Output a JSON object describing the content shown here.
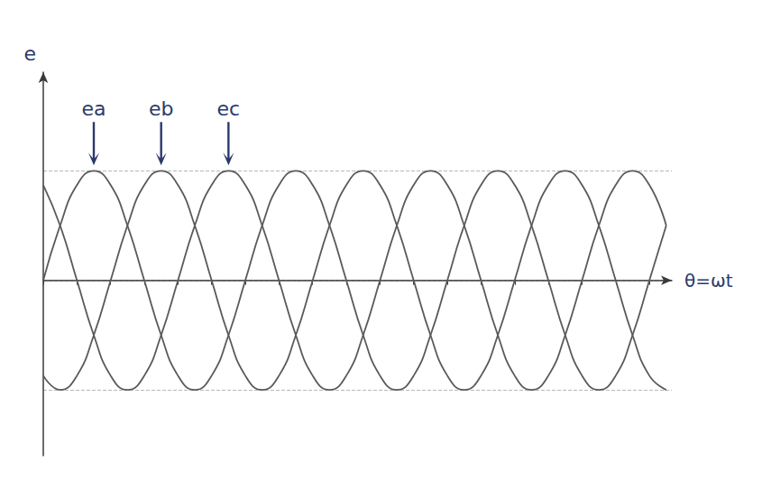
{
  "chart_data": {
    "type": "line",
    "xlabel": "θ=ωt",
    "ylabel": "e",
    "x": [
      0,
      30,
      60,
      90,
      120,
      150,
      180,
      210,
      240,
      270,
      300,
      330,
      360,
      390,
      420,
      450,
      480,
      510,
      540,
      570,
      600,
      630,
      660,
      690,
      720,
      750,
      780,
      810,
      840,
      870,
      900,
      930,
      960,
      990,
      1020,
      1050,
      1080,
      1110
    ],
    "series": [
      {
        "name": "ea",
        "color": "#5a5a5a",
        "values": [
          0,
          0.5,
          0.87,
          1,
          0.87,
          0.5,
          0,
          -0.5,
          -0.87,
          -1,
          -0.87,
          -0.5,
          0,
          0.5,
          0.87,
          1,
          0.87,
          0.5,
          0,
          -0.5,
          -0.87,
          -1,
          -0.87,
          -0.5,
          0,
          0.5,
          0.87,
          1,
          0.87,
          0.5,
          0,
          -0.5,
          -0.87,
          -1,
          -0.87,
          -0.5,
          0,
          0.5
        ]
      },
      {
        "name": "eb",
        "color": "#5a5a5a",
        "values": [
          -0.87,
          -1,
          -0.87,
          -0.5,
          0,
          0.5,
          0.87,
          1,
          0.87,
          0.5,
          0,
          -0.5,
          -0.87,
          -1,
          -0.87,
          -0.5,
          0,
          0.5,
          0.87,
          1,
          0.87,
          0.5,
          0,
          -0.5,
          -0.87,
          -1,
          -0.87,
          -0.5,
          0,
          0.5,
          0.87,
          1,
          0.87,
          0.5,
          0,
          -0.5,
          -0.87,
          -1
        ]
      },
      {
        "name": "ec",
        "color": "#5a5a5a",
        "values": [
          0.87,
          0.5,
          0,
          -0.5,
          -0.87,
          -1,
          -0.87,
          -0.5,
          0,
          0.5,
          0.87,
          1,
          0.87,
          0.5,
          0,
          -0.5,
          -0.87,
          -1,
          -0.87,
          -0.5,
          0,
          0.5,
          0.87,
          1,
          0.87,
          0.5,
          0,
          -0.5,
          -0.87,
          -1,
          -0.87,
          -0.5,
          0,
          0.5,
          0.87,
          1,
          0.87,
          0.5
        ]
      }
    ],
    "xlim": [
      0,
      1120
    ],
    "ylim": [
      -1.6,
      1.9
    ],
    "xticks": [
      0,
      60,
      120,
      180,
      240,
      300,
      360,
      420,
      480,
      540,
      600,
      660,
      720,
      780,
      840,
      900,
      960,
      1020,
      1080
    ],
    "yticks": [
      -1,
      0,
      1
    ],
    "grid": true,
    "tick_labels": false
  }
}
